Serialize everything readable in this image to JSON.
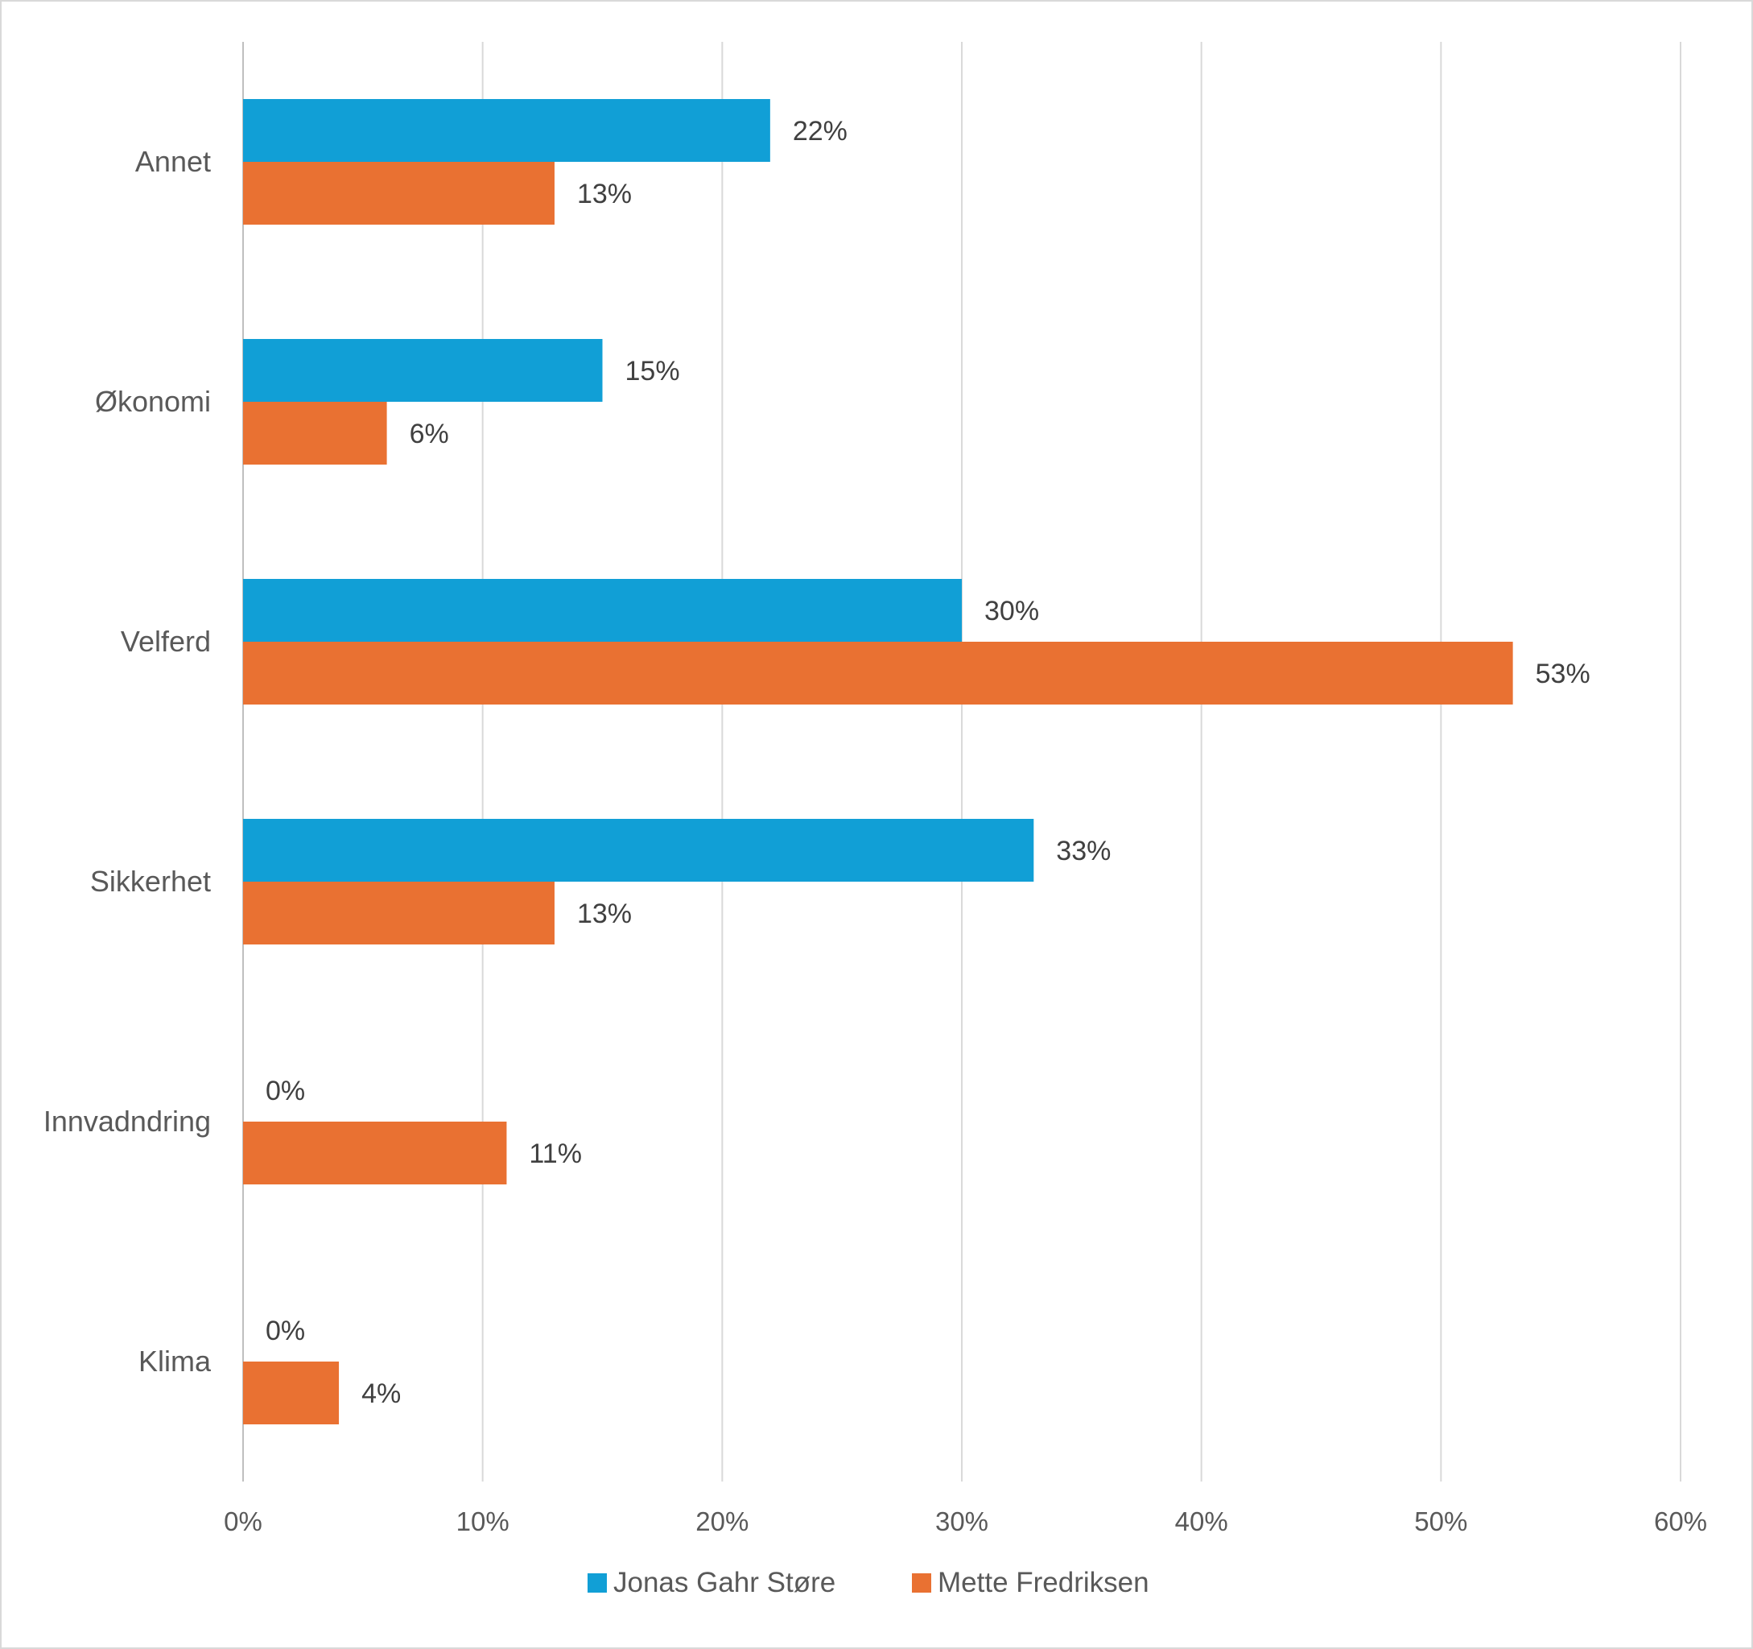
{
  "chart_data": {
    "type": "bar",
    "orientation": "horizontal",
    "categories": [
      "Annet",
      "Økonomi",
      "Velferd",
      "Sikkerhet",
      "Innvadndring",
      "Klima"
    ],
    "series": [
      {
        "name": "Jonas Gahr Støre",
        "color": "#119fd6",
        "values": [
          22,
          15,
          30,
          33,
          0,
          0
        ],
        "labels": [
          "22%",
          "15%",
          "30%",
          "33%",
          "0%",
          "0%"
        ]
      },
      {
        "name": "Mette Fredriksen",
        "color": "#e97132",
        "values": [
          13,
          6,
          53,
          13,
          11,
          4
        ],
        "labels": [
          "13%",
          "6%",
          "53%",
          "13%",
          "11%",
          "4%"
        ]
      }
    ],
    "xlim": [
      0,
      60
    ],
    "xticks": [
      0,
      10,
      20,
      30,
      40,
      50,
      60
    ],
    "xtick_labels": [
      "0%",
      "10%",
      "20%",
      "30%",
      "40%",
      "50%",
      "60%"
    ],
    "grid": true,
    "legend": "bottom-center",
    "title": "",
    "xlabel": "",
    "ylabel": ""
  }
}
